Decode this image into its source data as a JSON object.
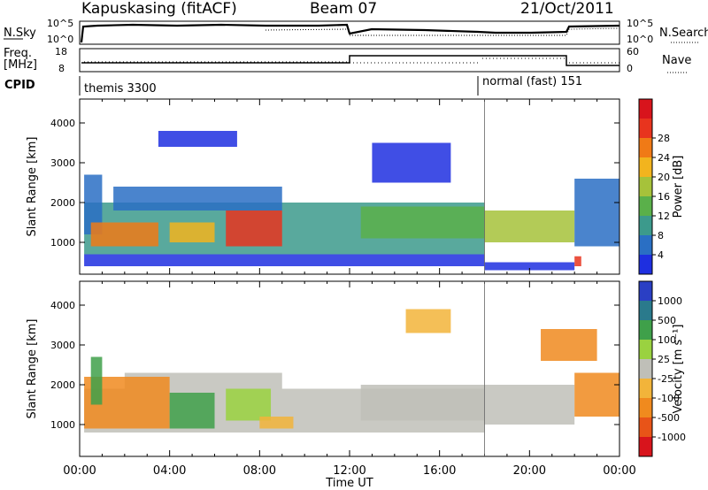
{
  "header": {
    "station": "Kapuskasing (fitACF)",
    "beam": "Beam 07",
    "date": "21/Oct/2011"
  },
  "strip": {
    "nsky_label": "N.Sky",
    "nsky_ticks": [
      "10^5",
      "10^0"
    ],
    "nsearch_label": "N.Search",
    "nsearch_ticks": [
      "10^5",
      "10^0"
    ],
    "freq_label_1": "Freq.",
    "freq_label_2": "[MHz]",
    "freq_ticks": [
      "18",
      "8"
    ],
    "nave_label": "Nave",
    "nave_ticks": [
      "60",
      "0"
    ],
    "cpid_label": "CPID",
    "cpid_segments": [
      {
        "name": "themis 3300",
        "start_hour": 0,
        "end_hour": 18
      },
      {
        "name": "normal (fast) 151",
        "start_hour": 18,
        "end_hour": 24
      }
    ]
  },
  "chart_data": [
    {
      "type": "heatmap",
      "quantity": "Power",
      "ylabel": "Slant Range [km]",
      "yticks": [
        1000,
        2000,
        3000,
        4000
      ],
      "ylim": [
        200,
        4600
      ],
      "xlim": [
        0,
        24
      ],
      "colorbar_label": "Power [dB]",
      "colorbar_ticks": [
        "4",
        "8",
        "12",
        "16",
        "20",
        "24",
        "28"
      ],
      "colorbar_colors": [
        "#1e2fe0",
        "#2a6fc4",
        "#3c9a8c",
        "#5ab04a",
        "#a6c23a",
        "#f2b41e",
        "#f07a16",
        "#e8341e",
        "#d8141c"
      ],
      "regions": [
        {
          "t0": 0.2,
          "t1": 18.0,
          "r0": 700,
          "r1": 2000,
          "value": 10
        },
        {
          "t0": 0.2,
          "t1": 1.0,
          "r0": 1200,
          "r1": 2700,
          "value": 8
        },
        {
          "t0": 1.5,
          "t1": 9.0,
          "r0": 1800,
          "r1": 2400,
          "value": 7
        },
        {
          "t0": 0.5,
          "t1": 3.5,
          "r0": 900,
          "r1": 1500,
          "value": 22
        },
        {
          "t0": 6.5,
          "t1": 9.0,
          "r0": 900,
          "r1": 1800,
          "value": 27
        },
        {
          "t0": 4.0,
          "t1": 6.0,
          "r0": 1000,
          "r1": 1500,
          "value": 19
        },
        {
          "t0": 12.5,
          "t1": 18.0,
          "r0": 1100,
          "r1": 1900,
          "value": 14
        },
        {
          "t0": 18.0,
          "t1": 22.0,
          "r0": 1000,
          "r1": 1800,
          "value": 16
        },
        {
          "t0": 22.0,
          "t1": 24.0,
          "r0": 900,
          "r1": 2600,
          "value": 6
        },
        {
          "t0": 0.2,
          "t1": 18.0,
          "r0": 400,
          "r1": 700,
          "value": 5
        },
        {
          "t0": 18.0,
          "t1": 22.0,
          "r0": 300,
          "r1": 500,
          "value": 4
        },
        {
          "t0": 22.0,
          "t1": 22.3,
          "r0": 400,
          "r1": 650,
          "value": 26
        },
        {
          "t0": 13.0,
          "t1": 16.5,
          "r0": 2500,
          "r1": 3500,
          "value": 5
        },
        {
          "t0": 3.5,
          "t1": 7.0,
          "r0": 3400,
          "r1": 3800,
          "value": 4
        }
      ]
    },
    {
      "type": "heatmap",
      "quantity": "Velocity",
      "ylabel": "Slant Range [km]",
      "xlabel": "Time UT",
      "yticks": [
        1000,
        2000,
        3000,
        4000
      ],
      "ylim": [
        200,
        4600
      ],
      "xlim": [
        0,
        24
      ],
      "xtick_labels": [
        "00:00",
        "04:00",
        "08:00",
        "12:00",
        "16:00",
        "20:00",
        "00:00"
      ],
      "colorbar_label": "Velocity [m s⁻¹]",
      "colorbar_ticks": [
        "1000",
        "500",
        "100",
        "25",
        "-25",
        "-100",
        "-500",
        "-1000"
      ],
      "colorbar_colors": [
        "#2a3fc4",
        "#2a7a8c",
        "#3fa04a",
        "#9ad240",
        "#bfbfb8",
        "#f2b43a",
        "#f08a1e",
        "#e85418",
        "#d8141c"
      ],
      "regions": [
        {
          "t0": 0.2,
          "t1": 18.0,
          "r0": 800,
          "r1": 1900,
          "value": 0
        },
        {
          "t0": 2.0,
          "t1": 9.0,
          "r0": 1900,
          "r1": 2300,
          "value": 0
        },
        {
          "t0": 0.2,
          "t1": 4.0,
          "r0": 900,
          "r1": 2200,
          "value": -150
        },
        {
          "t0": 0.5,
          "t1": 1.0,
          "r0": 1500,
          "r1": 2700,
          "value": 300
        },
        {
          "t0": 4.0,
          "t1": 6.0,
          "r0": 900,
          "r1": 1800,
          "value": 400
        },
        {
          "t0": 6.5,
          "t1": 8.5,
          "r0": 1100,
          "r1": 1900,
          "value": 80
        },
        {
          "t0": 8.0,
          "t1": 9.5,
          "r0": 900,
          "r1": 1200,
          "value": -80
        },
        {
          "t0": 12.5,
          "t1": 18.0,
          "r0": 1100,
          "r1": 2000,
          "value": 0
        },
        {
          "t0": 18.0,
          "t1": 22.0,
          "r0": 1000,
          "r1": 2000,
          "value": 0
        },
        {
          "t0": 22.0,
          "t1": 24.0,
          "r0": 1200,
          "r1": 2300,
          "value": -300
        },
        {
          "t0": 20.5,
          "t1": 23.0,
          "r0": 2600,
          "r1": 3400,
          "value": -300
        },
        {
          "t0": 14.5,
          "t1": 16.5,
          "r0": 3300,
          "r1": 3900,
          "value": -80
        }
      ]
    }
  ]
}
